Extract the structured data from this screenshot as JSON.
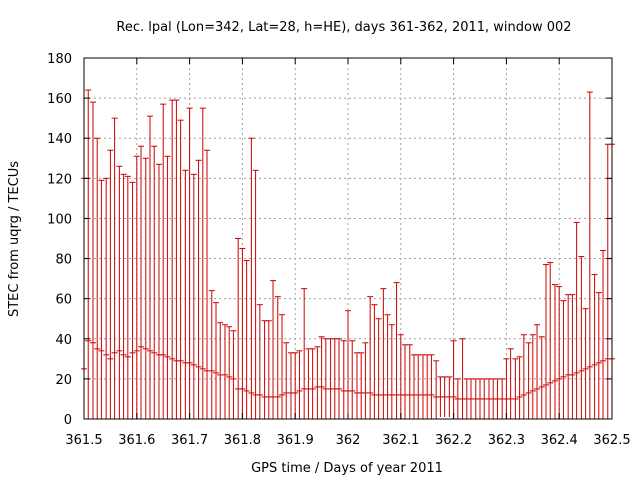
{
  "chart_data": {
    "type": "scatter",
    "title": "Rec. lpal (Lon=342, Lat=28, h=HE), days 361-362, 2011, window 002",
    "xlabel": "GPS time / Days of year 2011",
    "ylabel": "STEC from uqrg / TECUs",
    "xlim": [
      361.5,
      362.5
    ],
    "ylim": [
      0,
      180
    ],
    "xticks": [
      361.5,
      361.6,
      361.7,
      361.8,
      361.9,
      362,
      362.1,
      362.2,
      362.3,
      362.4,
      362.5
    ],
    "xtick_labels": [
      "361.5",
      "361.6",
      "361.7",
      "361.8",
      "361.9",
      "362",
      "362.1",
      "362.2",
      "362.3",
      "362.4",
      "362.5"
    ],
    "yticks": [
      0,
      20,
      40,
      60,
      80,
      100,
      120,
      140,
      160,
      180
    ],
    "ytick_labels": [
      "0",
      "20",
      "40",
      "60",
      "80",
      "100",
      "120",
      "140",
      "160",
      "180"
    ],
    "grid": true,
    "series_color": "#cc0000",
    "x": [
      361.5,
      361.508,
      361.517,
      361.525,
      361.533,
      361.542,
      361.55,
      361.558,
      361.567,
      361.575,
      361.583,
      361.592,
      361.6,
      361.608,
      361.617,
      361.625,
      361.633,
      361.642,
      361.65,
      361.658,
      361.667,
      361.675,
      361.683,
      361.692,
      361.7,
      361.708,
      361.717,
      361.725,
      361.733,
      361.742,
      361.75,
      361.758,
      361.767,
      361.775,
      361.783,
      361.792,
      361.8,
      361.808,
      361.817,
      361.825,
      361.833,
      361.842,
      361.85,
      361.858,
      361.867,
      361.875,
      361.883,
      361.892,
      361.9,
      361.908,
      361.917,
      361.925,
      361.933,
      361.942,
      361.95,
      361.958,
      361.967,
      361.975,
      361.983,
      361.992,
      362.0,
      362.008,
      362.017,
      362.025,
      362.033,
      362.042,
      362.05,
      362.058,
      362.067,
      362.075,
      362.083,
      362.092,
      362.1,
      362.108,
      362.117,
      362.125,
      362.133,
      362.142,
      362.15,
      362.158,
      362.167,
      362.175,
      362.183,
      362.192,
      362.2,
      362.208,
      362.217,
      362.225,
      362.233,
      362.242,
      362.25,
      362.258,
      362.267,
      362.275,
      362.283,
      362.292,
      362.3,
      362.308,
      362.317,
      362.325,
      362.333,
      362.342,
      362.35,
      362.358,
      362.367,
      362.375,
      362.383,
      362.392,
      362.4,
      362.408,
      362.417,
      362.425,
      362.433,
      362.442,
      362.45,
      362.458,
      362.467,
      362.475,
      362.483,
      362.492,
      362.5
    ],
    "y": [
      25,
      39,
      38,
      35,
      34,
      32,
      30,
      33,
      34,
      32,
      31,
      33,
      34,
      36,
      35,
      34,
      33,
      32,
      32,
      31,
      30,
      29,
      29,
      28,
      28,
      27,
      26,
      25,
      24,
      24,
      23,
      22,
      22,
      21,
      20,
      15,
      15,
      14,
      13,
      12,
      12,
      11,
      11,
      11,
      11,
      12,
      13,
      13,
      13,
      14,
      15,
      15,
      15,
      16,
      16,
      15,
      15,
      15,
      15,
      14,
      14,
      14,
      13,
      13,
      13,
      13,
      12,
      12,
      12,
      12,
      12,
      12,
      12,
      12,
      12,
      12,
      12,
      12,
      12,
      12,
      11,
      11,
      11,
      11,
      11,
      10,
      10,
      10,
      10,
      10,
      10,
      10,
      10,
      10,
      10,
      10,
      10,
      10,
      10,
      11,
      12,
      13,
      14,
      15,
      16,
      17,
      18,
      19,
      20,
      21,
      22,
      22,
      23,
      24,
      25,
      26,
      27,
      28,
      29,
      30,
      30
    ],
    "yerr": [
      95,
      125,
      120,
      105,
      85,
      88,
      104,
      117,
      92,
      90,
      90,
      85,
      97,
      100,
      95,
      117,
      103,
      95,
      125,
      100,
      129,
      130,
      120,
      96,
      127,
      95,
      103,
      130,
      110,
      40,
      35,
      26,
      25,
      25,
      24,
      75,
      70,
      65,
      127,
      112,
      45,
      38,
      38,
      58,
      50,
      40,
      25,
      20,
      20,
      20,
      50,
      20,
      20,
      20,
      25,
      25,
      25,
      25,
      25,
      25,
      40,
      25,
      20,
      20,
      25,
      48,
      45,
      38,
      53,
      40,
      35,
      56,
      30,
      25,
      25,
      20,
      20,
      20,
      20,
      20,
      18,
      10,
      10,
      10,
      28,
      10,
      30,
      10,
      10,
      10,
      10,
      10,
      10,
      10,
      10,
      10,
      20,
      25,
      20,
      20,
      30,
      25,
      28,
      32,
      25,
      60,
      60,
      48,
      46,
      38,
      40,
      40,
      75,
      57,
      30,
      137,
      45,
      35,
      55,
      107,
      107
    ],
    "series": [
      {
        "values": "y",
        "error": "yerr"
      }
    ]
  }
}
